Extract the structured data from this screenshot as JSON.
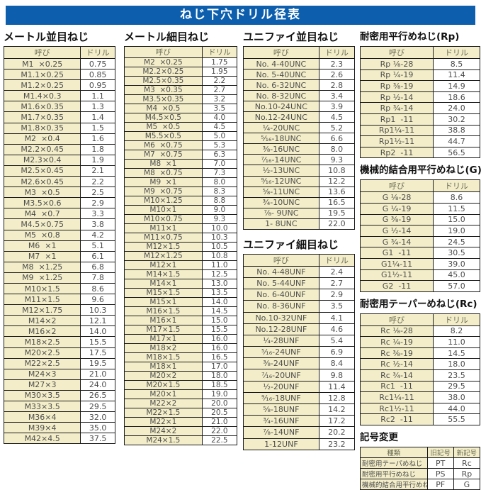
{
  "title": "ねじ下穴ドリル径表",
  "colors": {
    "title_bg": "#0d5fad",
    "cream": "#f3eec9",
    "border": "#1a1a1a"
  },
  "tables": {
    "metric_coarse": {
      "heading": "メートル並目ねじ",
      "col_headers": [
        "呼び",
        "ドリル"
      ],
      "rows": [
        [
          "M1  ×0.25",
          "0.75"
        ],
        [
          "M1.1×0.25",
          "0.85"
        ],
        [
          "M1.2×0.25",
          "0.95"
        ],
        [
          "M1.4×0.3",
          "1.1"
        ],
        [
          "M1.6×0.35",
          "1.3"
        ],
        [
          "M1.7×0.35",
          "1.4"
        ],
        [
          "M1.8×0.35",
          "1.5"
        ],
        [
          "M2  ×0.4",
          "1.6"
        ],
        [
          "M2.2×0.45",
          "1.8"
        ],
        [
          "M2.3×0.4",
          "1.9"
        ],
        [
          "M2.5×0.45",
          "2.1"
        ],
        [
          "M2.6×0.45",
          "2.2"
        ],
        [
          "M3  ×0.5",
          "2.5"
        ],
        [
          "M3.5×0.6",
          "2.9"
        ],
        [
          "M4  ×0.7",
          "3.3"
        ],
        [
          "M4.5×0.75",
          "3.8"
        ],
        [
          "M5  ×0.8",
          "4.2"
        ],
        [
          "M6  ×1",
          "5.1"
        ],
        [
          "M7  ×1",
          "6.1"
        ],
        [
          "M8  ×1.25",
          "6.8"
        ],
        [
          "M9  ×1.25",
          "7.8"
        ],
        [
          "M10×1.5",
          "8.6"
        ],
        [
          "M11×1.5",
          "9.6"
        ],
        [
          "M12×1.75",
          "10.3"
        ],
        [
          "M14×2",
          "12.1"
        ],
        [
          "M16×2",
          "14.0"
        ],
        [
          "M18×2.5",
          "15.5"
        ],
        [
          "M20×2.5",
          "17.5"
        ],
        [
          "M22×2.5",
          "19.5"
        ],
        [
          "M24×3",
          "21.0"
        ],
        [
          "M27×3",
          "24.0"
        ],
        [
          "M30×3.5",
          "26.5"
        ],
        [
          "M33×3.5",
          "29.5"
        ],
        [
          "M36×4",
          "32.0"
        ],
        [
          "M39×4",
          "35.0"
        ],
        [
          "M42×4.5",
          "37.5"
        ]
      ]
    },
    "metric_fine": {
      "heading": "メートル細目ねじ",
      "col_headers": [
        "呼び",
        "ドリル"
      ],
      "rows": [
        [
          "M2  ×0.25",
          "1.75"
        ],
        [
          "M2.2×0.25",
          "1.95"
        ],
        [
          "M2.5×0.35",
          "2.2"
        ],
        [
          "M3  ×0.35",
          "2.7"
        ],
        [
          "M3.5×0.35",
          "3.2"
        ],
        [
          "M4  ×0.5",
          "3.5"
        ],
        [
          "M4.5×0.5",
          "4.0"
        ],
        [
          "M5  ×0.5",
          "4.5"
        ],
        [
          "M5.5×0.5",
          "5.0"
        ],
        [
          "M6  ×0.75",
          "5.3"
        ],
        [
          "M7  ×0.75",
          "6.3"
        ],
        [
          "M8  ×1",
          "7.0"
        ],
        [
          "M8  ×0.75",
          "7.3"
        ],
        [
          "M9  ×1",
          "8.0"
        ],
        [
          "M9  ×0.75",
          "8.3"
        ],
        [
          "M10×1.25",
          "8.8"
        ],
        [
          "M10×1",
          "9.0"
        ],
        [
          "M10×0.75",
          "9.3"
        ],
        [
          "M11×1",
          "10.0"
        ],
        [
          "M11×0.75",
          "10.3"
        ],
        [
          "M12×1.5",
          "10.5"
        ],
        [
          "M12×1.25",
          "10.8"
        ],
        [
          "M12×1",
          "11.0"
        ],
        [
          "M14×1.5",
          "12.5"
        ],
        [
          "M14×1",
          "13.0"
        ],
        [
          "M15×1.5",
          "13.5"
        ],
        [
          "M15×1",
          "14.0"
        ],
        [
          "M16×1.5",
          "14.5"
        ],
        [
          "M16×1",
          "15.0"
        ],
        [
          "M17×1.5",
          "15.5"
        ],
        [
          "M17×1",
          "16.0"
        ],
        [
          "M18×2",
          "16.0"
        ],
        [
          "M18×1.5",
          "16.5"
        ],
        [
          "M18×1",
          "17.0"
        ],
        [
          "M20×2",
          "18.0"
        ],
        [
          "M20×1.5",
          "18.5"
        ],
        [
          "M20×1",
          "19.0"
        ],
        [
          "M22×2",
          "20.0"
        ],
        [
          "M22×1.5",
          "20.5"
        ],
        [
          "M22×1",
          "21.0"
        ],
        [
          "M24×2",
          "22.0"
        ],
        [
          "M24×1.5",
          "22.5"
        ]
      ]
    },
    "unified_coarse": {
      "heading": "ユニファイ並目ねじ",
      "col_headers": [
        "呼び",
        "ドリル"
      ],
      "rows": [
        [
          "No. 4-40UNC",
          "2.3"
        ],
        [
          "No. 5-40UNC",
          "2.6"
        ],
        [
          "No. 6-32UNC",
          "2.8"
        ],
        [
          "No. 8-32UNC",
          "3.4"
        ],
        [
          "No.10-24UNC",
          "3.9"
        ],
        [
          "No.12-24UNC",
          "4.5"
        ],
        [
          "¹⁄₄-20UNC",
          "5.2"
        ],
        [
          "⁵⁄₁₆-18UNC",
          "6.6"
        ],
        [
          "³⁄₈-16UNC",
          "8.0"
        ],
        [
          "⁷⁄₁₆-14UNC",
          "9.3"
        ],
        [
          "¹⁄₂-13UNC",
          "10.8"
        ],
        [
          "⁹⁄₁₆-12UNC",
          "12.2"
        ],
        [
          "⁵⁄₈-11UNC",
          "13.6"
        ],
        [
          "³⁄₄-10UNC",
          "16.5"
        ],
        [
          "⁷⁄₈- 9UNC",
          "19.5"
        ],
        [
          "1- 8UNC",
          "22.0"
        ]
      ]
    },
    "unified_fine": {
      "heading": "ユニファイ細目ねじ",
      "col_headers": [
        "呼び",
        "ドリル"
      ],
      "rows": [
        [
          "No. 4-48UNF",
          "2.4"
        ],
        [
          "No. 5-44UNF",
          "2.7"
        ],
        [
          "No. 6-40UNF",
          "2.9"
        ],
        [
          "No. 8-36UNF",
          "3.5"
        ],
        [
          "No.10-32UNF",
          "4.1"
        ],
        [
          "No.12-28UNF",
          "4.6"
        ],
        [
          "¹⁄₄-28UNF",
          "5.4"
        ],
        [
          "⁵⁄₁₆-24UNF",
          "6.9"
        ],
        [
          "³⁄₈-24UNF",
          "8.4"
        ],
        [
          "⁷⁄₁₆-20UNF",
          "9.8"
        ],
        [
          "¹⁄₂-20UNF",
          "11.4"
        ],
        [
          "⁹⁄₁₆-18UNF",
          "12.8"
        ],
        [
          "⁵⁄₈-18UNF",
          "14.2"
        ],
        [
          "³⁄₄-16UNF",
          "17.2"
        ],
        [
          "⁷⁄₈-14UNF",
          "20.2"
        ],
        [
          "1-12UNF",
          "23.2"
        ]
      ]
    },
    "rp": {
      "heading": "耐密用平行めねじ(Rp)",
      "col_headers": [
        "呼び",
        "ドリル"
      ],
      "rows": [
        [
          "Rp ¹⁄₈-28",
          "8.5"
        ],
        [
          "Rp ¹⁄₄-19",
          "11.4"
        ],
        [
          "Rp ³⁄₈-19",
          "14.9"
        ],
        [
          "Rp ¹⁄₂-14",
          "18.6"
        ],
        [
          "Rp ³⁄₄-14",
          "24.0"
        ],
        [
          "Rp1  -11",
          "30.2"
        ],
        [
          "Rp1¹⁄₄-11",
          "38.8"
        ],
        [
          "Rp1¹⁄₂-11",
          "44.7"
        ],
        [
          "Rp2  -11",
          "56.5"
        ]
      ]
    },
    "g": {
      "heading": "機械的結合用平行めねじ(G)",
      "col_headers": [
        "呼び",
        "ドリル"
      ],
      "rows": [
        [
          "G ¹⁄₈-28",
          "8.6"
        ],
        [
          "G ¹⁄₄-19",
          "11.5"
        ],
        [
          "G ³⁄₈-19",
          "15.0"
        ],
        [
          "G ¹⁄₂-14",
          "19.0"
        ],
        [
          "G ³⁄₄-14",
          "24.5"
        ],
        [
          "G1  -11",
          "30.5"
        ],
        [
          "G1¹⁄₄-11",
          "39.0"
        ],
        [
          "G1¹⁄₂-11",
          "45.0"
        ],
        [
          "G2  -11",
          "57.0"
        ]
      ]
    },
    "rc": {
      "heading": "耐密用テーパーめねじ(Rc)",
      "col_headers": [
        "呼び",
        "ドリル"
      ],
      "rows": [
        [
          "Rc ¹⁄₈-28",
          "8.2"
        ],
        [
          "Rc ¹⁄₄-19",
          "11.0"
        ],
        [
          "Rc ³⁄₈-19",
          "14.5"
        ],
        [
          "Rc ¹⁄₂-14",
          "18.0"
        ],
        [
          "Rc ³⁄₄-14",
          "23.5"
        ],
        [
          "Rc1  -11",
          "29.5"
        ],
        [
          "Rc1¹⁄₄-11",
          "38.0"
        ],
        [
          "Rc1¹⁄₂-11",
          "44.0"
        ],
        [
          "Rc2  -11",
          "55.5"
        ]
      ]
    },
    "symbol_change": {
      "heading": "記号変更",
      "col_headers": [
        "種類",
        "旧記号",
        "新記号"
      ],
      "rows": [
        [
          "耐密用テーパめねじ",
          "PT",
          "Rc"
        ],
        [
          "耐密用平行めねじ",
          "PS",
          "Rp"
        ],
        [
          "機械的結合用平行めねじ",
          "PF",
          "G"
        ]
      ]
    }
  }
}
